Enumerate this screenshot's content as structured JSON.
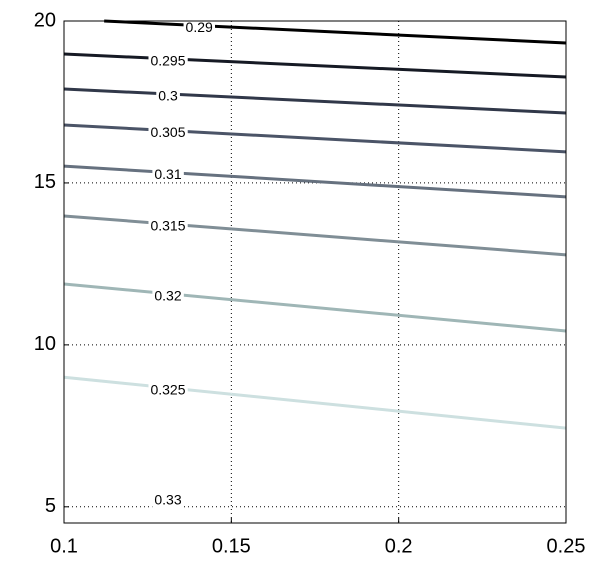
{
  "chart_data": {
    "type": "contour",
    "xlim": [
      0.1,
      0.25
    ],
    "ylim": [
      4.5,
      20
    ],
    "xticks": [
      0.1,
      0.15,
      0.2,
      0.25
    ],
    "yticks": [
      5,
      10,
      15,
      20
    ],
    "grid": true,
    "contours": [
      {
        "level": 0.29,
        "color": "#000000",
        "x": [
          0.112,
          0.25
        ],
        "y": [
          20,
          19.32
        ]
      },
      {
        "level": 0.295,
        "color": "#161a24",
        "x": [
          0.1,
          0.25
        ],
        "y": [
          18.98,
          18.27
        ]
      },
      {
        "level": 0.3,
        "color": "#313849",
        "x": [
          0.1,
          0.25
        ],
        "y": [
          17.9,
          17.16
        ]
      },
      {
        "level": 0.305,
        "color": "#4b5467",
        "x": [
          0.1,
          0.25
        ],
        "y": [
          16.79,
          15.96
        ]
      },
      {
        "level": 0.31,
        "color": "#66717f",
        "x": [
          0.1,
          0.25
        ],
        "y": [
          15.52,
          14.57
        ]
      },
      {
        "level": 0.315,
        "color": "#808e96",
        "x": [
          0.1,
          0.25
        ],
        "y": [
          13.98,
          12.78
        ]
      },
      {
        "level": 0.32,
        "color": "#9fb6b6",
        "x": [
          0.1,
          0.25
        ],
        "y": [
          11.88,
          10.43
        ]
      },
      {
        "level": 0.325,
        "color": "#cde0e0",
        "x": [
          0.1,
          0.25
        ],
        "y": [
          9.0,
          7.43
        ]
      },
      {
        "level": 0.33,
        "color": "#e8f2f2"
      }
    ]
  }
}
